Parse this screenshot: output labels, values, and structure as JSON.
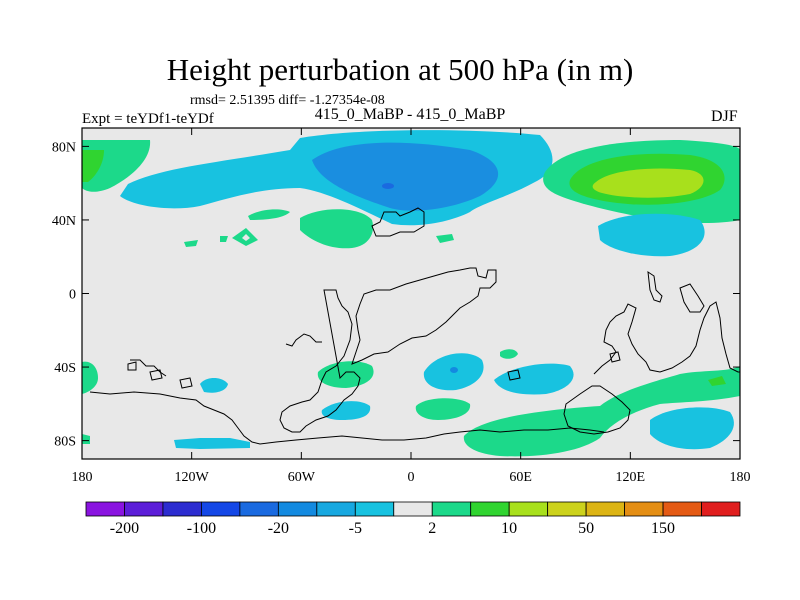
{
  "chart_data": {
    "type": "filled-contour-map",
    "title": "Height perturbation at 500 hPa (in m)",
    "stats_text": "rmsd= 2.51395 diff= -1.27354e-08",
    "left_label": "Expt = teYDf1-teYDf",
    "center_label": "415_0_MaBP - 415_0_MaBP",
    "right_label": "DJF",
    "xlim": [
      -180,
      180
    ],
    "ylim": [
      -90,
      90
    ],
    "x_ticks": [
      {
        "value": -180,
        "label": "180"
      },
      {
        "value": -120,
        "label": "120W"
      },
      {
        "value": -60,
        "label": "60W"
      },
      {
        "value": 0,
        "label": "0"
      },
      {
        "value": 60,
        "label": "60E"
      },
      {
        "value": 120,
        "label": "120E"
      },
      {
        "value": 180,
        "label": "180"
      }
    ],
    "y_ticks": [
      {
        "value": 80,
        "label": "80N"
      },
      {
        "value": 40,
        "label": "40N"
      },
      {
        "value": 0,
        "label": "0"
      },
      {
        "value": -40,
        "label": "40S"
      },
      {
        "value": -80,
        "label": "80S"
      }
    ],
    "colorbar": {
      "colors": [
        "#8a14e0",
        "#5c1ed8",
        "#2c2cd0",
        "#1447e6",
        "#1a6ae0",
        "#138ae0",
        "#17a8e0",
        "#18c2e0",
        "#e8e8e8",
        "#1cd98a",
        "#30d430",
        "#a8e01c",
        "#ccd21c",
        "#dcb414",
        "#e48e14",
        "#e45a14",
        "#e01e1e"
      ],
      "labels": [
        "-200",
        "-100",
        "-20",
        "-5",
        "2",
        "10",
        "50",
        "150"
      ]
    },
    "regions": [
      {
        "name": "Arctic/N. Atlantic low",
        "level_color": "#18c2e0",
        "center": [
          -10,
          68
        ]
      },
      {
        "name": "Arctic/N. Atlantic low core",
        "level_color": "#138ae0",
        "center": [
          -10,
          68
        ]
      },
      {
        "name": "N. Pacific high",
        "level_color": "#1cd98a",
        "center": [
          135,
          65
        ]
      },
      {
        "name": "N. Pacific high core",
        "level_color": "#a8e01c",
        "center": [
          135,
          66
        ]
      },
      {
        "name": "Southern Ocean high",
        "level_color": "#1cd98a",
        "center": [
          60,
          -75
        ]
      }
    ]
  }
}
